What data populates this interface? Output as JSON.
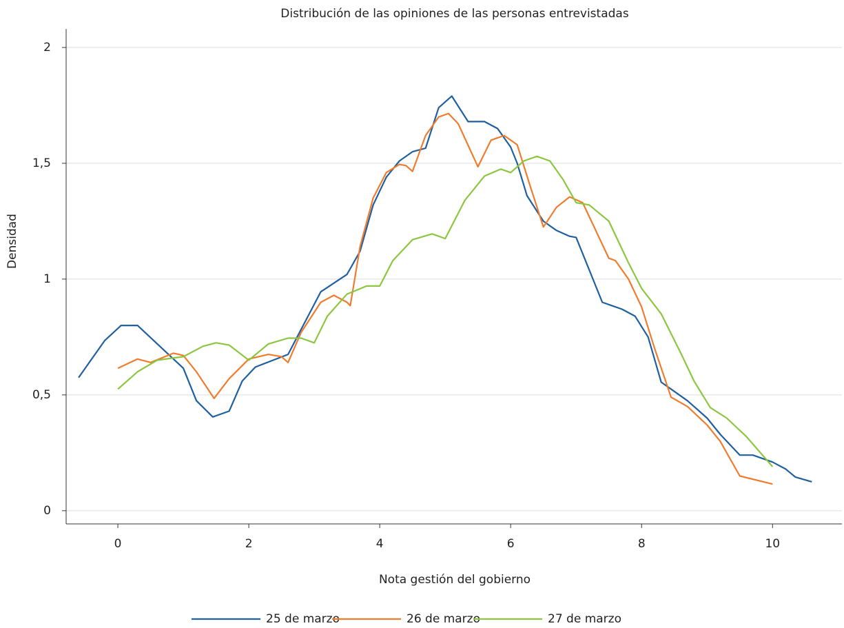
{
  "chart_data": {
    "type": "line",
    "title": "Distribución de las opiniones de las personas entrevistadas",
    "x_label": "Nota gestión del gobierno",
    "y_label": "Densidad",
    "xlim": [
      -0.79,
      11.06
    ],
    "ylim": [
      -0.057,
      2.08
    ],
    "xticks": [
      0,
      2,
      4,
      6,
      8,
      10
    ],
    "yticks": [
      0,
      {
        "value": 0.5,
        "label": "0,5"
      },
      1,
      {
        "value": 1.5,
        "label": "1,5"
      },
      2
    ],
    "grid": true,
    "legend": "bottom",
    "series": [
      {
        "name": "25 de marzo",
        "color": "#1f5fa0",
        "x": [
          -0.6,
          -0.2,
          0.05,
          0.3,
          1.0,
          1.2,
          1.45,
          1.7,
          1.9,
          2.1,
          2.6,
          3.1,
          3.5,
          3.7,
          3.9,
          4.1,
          4.3,
          4.5,
          4.7,
          4.9,
          5.1,
          5.35,
          5.6,
          5.8,
          6.0,
          6.1,
          6.25,
          6.5,
          6.7,
          6.9,
          7.0,
          7.4,
          7.7,
          7.9,
          8.1,
          8.3,
          8.5,
          8.7,
          9.0,
          9.2,
          9.5,
          9.7,
          10.0,
          10.2,
          10.35,
          10.6
        ],
        "values": [
          0.575,
          0.735,
          0.8,
          0.8,
          0.615,
          0.475,
          0.405,
          0.43,
          0.56,
          0.62,
          0.675,
          0.945,
          1.02,
          1.12,
          1.32,
          1.44,
          1.51,
          1.55,
          1.565,
          1.74,
          1.79,
          1.68,
          1.68,
          1.65,
          1.57,
          1.5,
          1.36,
          1.25,
          1.21,
          1.185,
          1.18,
          0.9,
          0.87,
          0.84,
          0.75,
          0.555,
          0.515,
          0.475,
          0.4,
          0.33,
          0.24,
          0.24,
          0.21,
          0.18,
          0.145,
          0.125
        ]
      },
      {
        "name": "26 de marzo",
        "color": "#f07b2c",
        "x": [
          0,
          0.3,
          0.5,
          0.85,
          1.0,
          1.2,
          1.47,
          1.7,
          2.0,
          2.3,
          2.5,
          2.6,
          2.8,
          3.1,
          3.3,
          3.5,
          3.55,
          3.7,
          3.9,
          4.1,
          4.3,
          4.4,
          4.5,
          4.7,
          4.9,
          5.05,
          5.2,
          5.5,
          5.7,
          5.9,
          6.1,
          6.3,
          6.5,
          6.7,
          6.9,
          7.1,
          7.3,
          7.5,
          7.6,
          7.8,
          8.0,
          8.2,
          8.45,
          8.7,
          9.0,
          9.2,
          9.5,
          10.0
        ],
        "values": [
          0.615,
          0.655,
          0.64,
          0.68,
          0.67,
          0.6,
          0.485,
          0.57,
          0.655,
          0.675,
          0.665,
          0.64,
          0.77,
          0.9,
          0.93,
          0.9,
          0.885,
          1.14,
          1.35,
          1.46,
          1.495,
          1.49,
          1.465,
          1.62,
          1.7,
          1.715,
          1.67,
          1.485,
          1.6,
          1.62,
          1.58,
          1.4,
          1.225,
          1.31,
          1.355,
          1.33,
          1.21,
          1.09,
          1.08,
          1.0,
          0.88,
          0.7,
          0.49,
          0.45,
          0.37,
          0.3,
          0.15,
          0.115
        ]
      },
      {
        "name": "27 de marzo",
        "color": "#8cc63f",
        "x": [
          0,
          0.3,
          0.6,
          1.0,
          1.3,
          1.5,
          1.7,
          2.0,
          2.3,
          2.6,
          2.8,
          3.0,
          3.2,
          3.5,
          3.8,
          4.0,
          4.2,
          4.5,
          4.8,
          5.0,
          5.3,
          5.6,
          5.85,
          6.0,
          6.2,
          6.4,
          6.6,
          6.8,
          7.0,
          7.2,
          7.5,
          7.8,
          8.0,
          8.3,
          8.6,
          8.8,
          9.05,
          9.3,
          9.6,
          10.0
        ],
        "values": [
          0.525,
          0.6,
          0.65,
          0.665,
          0.71,
          0.725,
          0.715,
          0.65,
          0.72,
          0.745,
          0.745,
          0.725,
          0.84,
          0.935,
          0.97,
          0.97,
          1.08,
          1.17,
          1.195,
          1.175,
          1.34,
          1.445,
          1.475,
          1.46,
          1.51,
          1.53,
          1.51,
          1.43,
          1.33,
          1.32,
          1.25,
          1.07,
          0.96,
          0.85,
          0.68,
          0.56,
          0.445,
          0.4,
          0.32,
          0.19
        ]
      }
    ]
  }
}
